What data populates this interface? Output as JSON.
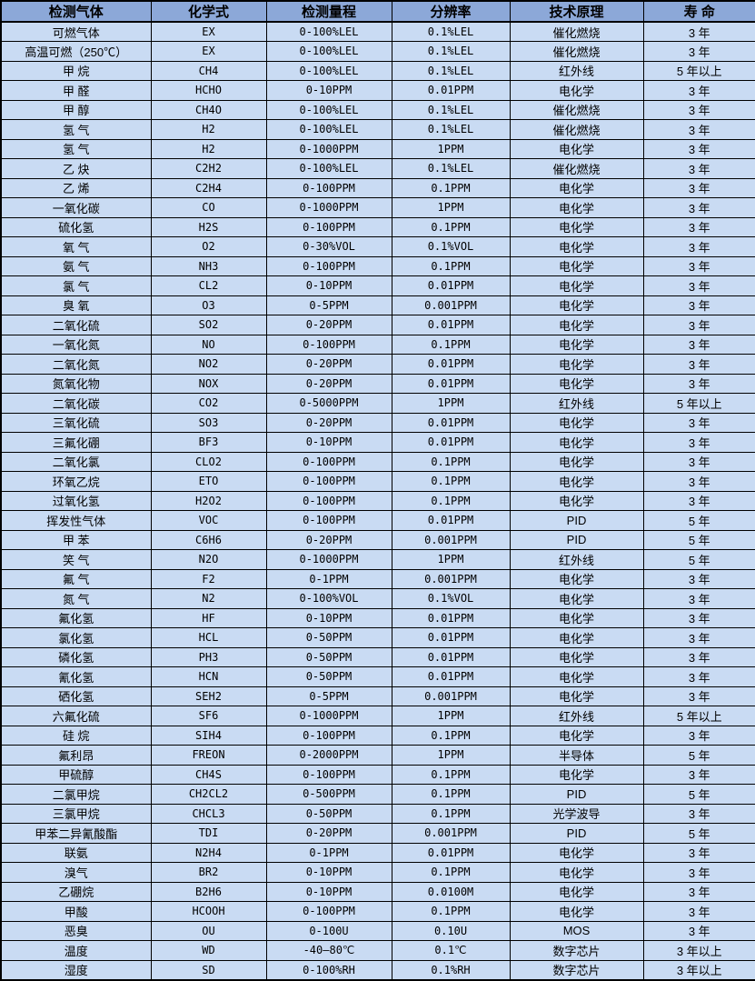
{
  "table": {
    "headers": [
      "检测气体",
      "化学式",
      "检测量程",
      "分辨率",
      "技术原理",
      "寿 命"
    ],
    "rows": [
      [
        "可燃气体",
        "EX",
        "0-100%LEL",
        "0.1%LEL",
        "催化燃烧",
        "3 年"
      ],
      [
        "高温可燃（250℃）",
        "EX",
        "0-100%LEL",
        "0.1%LEL",
        "催化燃烧",
        "3 年"
      ],
      [
        "甲 烷",
        "CH4",
        "0-100%LEL",
        "0.1%LEL",
        "红外线",
        "5 年以上"
      ],
      [
        "甲 醛",
        "HCHO",
        "0-10PPM",
        "0.01PPM",
        "电化学",
        "3 年"
      ],
      [
        "甲 醇",
        "CH4O",
        "0-100%LEL",
        "0.1%LEL",
        "催化燃烧",
        "3 年"
      ],
      [
        "氢 气",
        "H2",
        "0-100%LEL",
        "0.1%LEL",
        "催化燃烧",
        "3 年"
      ],
      [
        "氢 气",
        "H2",
        "0-1000PPM",
        "1PPM",
        "电化学",
        "3 年"
      ],
      [
        "乙 炔",
        "C2H2",
        "0-100%LEL",
        "0.1%LEL",
        "催化燃烧",
        "3 年"
      ],
      [
        "乙 烯",
        "C2H4",
        "0-100PPM",
        "0.1PPM",
        "电化学",
        "3 年"
      ],
      [
        "一氧化碳",
        "CO",
        "0-1000PPM",
        "1PPM",
        "电化学",
        "3 年"
      ],
      [
        "硫化氢",
        "H2S",
        "0-100PPM",
        "0.1PPM",
        "电化学",
        "3 年"
      ],
      [
        "氧 气",
        "O2",
        "0-30%VOL",
        "0.1%VOL",
        "电化学",
        "3 年"
      ],
      [
        "氨 气",
        "NH3",
        "0-100PPM",
        "0.1PPM",
        "电化学",
        "3 年"
      ],
      [
        "氯 气",
        "CL2",
        "0-10PPM",
        "0.01PPM",
        "电化学",
        "3 年"
      ],
      [
        "臭 氧",
        "O3",
        "0-5PPM",
        "0.001PPM",
        "电化学",
        "3 年"
      ],
      [
        "二氧化硫",
        "SO2",
        "0-20PPM",
        "0.01PPM",
        "电化学",
        "3 年"
      ],
      [
        "一氧化氮",
        "NO",
        "0-100PPM",
        "0.1PPM",
        "电化学",
        "3 年"
      ],
      [
        "二氧化氮",
        "NO2",
        "0-20PPM",
        "0.01PPM",
        "电化学",
        "3 年"
      ],
      [
        "氮氧化物",
        "NOX",
        "0-20PPM",
        "0.01PPM",
        "电化学",
        "3 年"
      ],
      [
        "二氧化碳",
        "CO2",
        "0-5000PPM",
        "1PPM",
        "红外线",
        "5 年以上"
      ],
      [
        "三氧化硫",
        "SO3",
        "0-20PPM",
        "0.01PPM",
        "电化学",
        "3 年"
      ],
      [
        "三氟化硼",
        "BF3",
        "0-10PPM",
        "0.01PPM",
        "电化学",
        "3 年"
      ],
      [
        "二氧化氯",
        "CLO2",
        "0-100PPM",
        "0.1PPM",
        "电化学",
        "3 年"
      ],
      [
        "环氧乙烷",
        "ETO",
        "0-100PPM",
        "0.1PPM",
        "电化学",
        "3 年"
      ],
      [
        "过氧化氢",
        "H2O2",
        "0-100PPM",
        "0.1PPM",
        "电化学",
        "3 年"
      ],
      [
        "挥发性气体",
        "VOC",
        "0-100PPM",
        "0.01PPM",
        "PID",
        "5 年"
      ],
      [
        "甲 苯",
        "C6H6",
        "0-20PPM",
        "0.001PPM",
        "PID",
        "5 年"
      ],
      [
        "笑 气",
        "N2O",
        "0-1000PPM",
        "1PPM",
        "红外线",
        "5 年"
      ],
      [
        "氟 气",
        "F2",
        "0-1PPM",
        "0.001PPM",
        "电化学",
        "3 年"
      ],
      [
        "氮 气",
        "N2",
        "0-100%VOL",
        "0.1%VOL",
        "电化学",
        "3 年"
      ],
      [
        "氟化氢",
        "HF",
        "0-10PPM",
        "0.01PPM",
        "电化学",
        "3 年"
      ],
      [
        "氯化氢",
        "HCL",
        "0-50PPM",
        "0.01PPM",
        "电化学",
        "3 年"
      ],
      [
        "磷化氢",
        "PH3",
        "0-50PPM",
        "0.01PPM",
        "电化学",
        "3 年"
      ],
      [
        "氰化氢",
        "HCN",
        "0-50PPM",
        "0.01PPM",
        "电化学",
        "3 年"
      ],
      [
        "硒化氢",
        "SEH2",
        "0-5PPM",
        "0.001PPM",
        "电化学",
        "3 年"
      ],
      [
        "六氟化硫",
        "SF6",
        "0-1000PPM",
        "1PPM",
        "红外线",
        "5 年以上"
      ],
      [
        "硅 烷",
        "SIH4",
        "0-100PPM",
        "0.1PPM",
        "电化学",
        "3 年"
      ],
      [
        "氟利昂",
        "FREON",
        "0-2000PPM",
        "1PPM",
        "半导体",
        "5 年"
      ],
      [
        "甲硫醇",
        "CH4S",
        "0-100PPM",
        "0.1PPM",
        "电化学",
        "3 年"
      ],
      [
        "二氯甲烷",
        "CH2CL2",
        "0-500PPM",
        "0.1PPM",
        "PID",
        "5 年"
      ],
      [
        "三氯甲烷",
        "CHCL3",
        "0-50PPM",
        "0.1PPM",
        "光学波导",
        "3 年"
      ],
      [
        "甲苯二异氰酸酯",
        "TDI",
        "0-20PPM",
        "0.001PPM",
        "PID",
        "5 年"
      ],
      [
        "联氨",
        "N2H4",
        "0-1PPM",
        "0.01PPM",
        "电化学",
        "3 年"
      ],
      [
        "溴气",
        "BR2",
        "0-10PPM",
        "0.1PPM",
        "电化学",
        "3 年"
      ],
      [
        "乙硼烷",
        "B2H6",
        "0-10PPM",
        "0.0100M",
        "电化学",
        "3 年"
      ],
      [
        "甲酸",
        "HCOOH",
        "0-100PPM",
        "0.1PPM",
        "电化学",
        "3 年"
      ],
      [
        "恶臭",
        "OU",
        "0-100U",
        "0.10U",
        "MOS",
        "3 年"
      ],
      [
        "温度",
        "WD",
        "-40—80℃",
        "0.1℃",
        "数字芯片",
        "3 年以上"
      ],
      [
        "湿度",
        "SD",
        "0-100%RH",
        "0.1%RH",
        "数字芯片",
        "3 年以上"
      ]
    ],
    "colors": {
      "header_bg": "#8CA8D8",
      "row_bg": "#C9DBF3",
      "border": "#000000",
      "text": "#000000"
    }
  }
}
